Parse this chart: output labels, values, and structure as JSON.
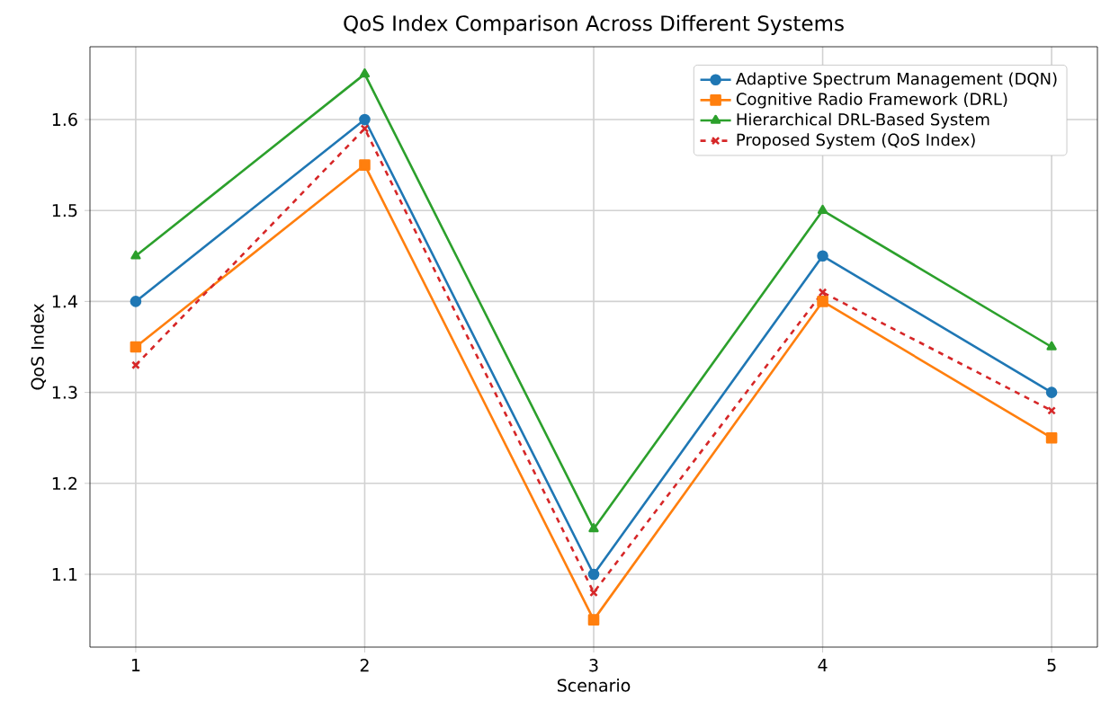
{
  "chart_data": {
    "type": "line",
    "title": "QoS Index Comparison Across Different Systems",
    "xlabel": "Scenario",
    "ylabel": "QoS Index",
    "x": [
      1,
      2,
      3,
      4,
      5
    ],
    "xlim": [
      0.8,
      5.2
    ],
    "xticks": [
      1,
      2,
      3,
      4,
      5
    ],
    "ylim": [
      1.02,
      1.68
    ],
    "yticks": [
      1.1,
      1.2,
      1.3,
      1.4,
      1.5,
      1.6
    ],
    "grid": true,
    "legend": "top right",
    "series": [
      {
        "name": "Adaptive Spectrum Management (DQN)",
        "color": "#1f77b4",
        "marker": "circle",
        "line_style": "solid",
        "values": [
          1.4,
          1.6,
          1.1,
          1.45,
          1.3
        ]
      },
      {
        "name": "Cognitive Radio Framework (DRL)",
        "color": "#ff7f0e",
        "marker": "square",
        "line_style": "solid",
        "values": [
          1.35,
          1.55,
          1.05,
          1.4,
          1.25
        ]
      },
      {
        "name": "Hierarchical DRL-Based System",
        "color": "#2ca02c",
        "marker": "triangle",
        "line_style": "solid",
        "values": [
          1.45,
          1.65,
          1.15,
          1.5,
          1.35
        ]
      },
      {
        "name": "Proposed System (QoS Index)",
        "color": "#d62728",
        "marker": "cross",
        "line_style": "dashed",
        "values": [
          1.33,
          1.59,
          1.08,
          1.41,
          1.28
        ]
      }
    ]
  }
}
